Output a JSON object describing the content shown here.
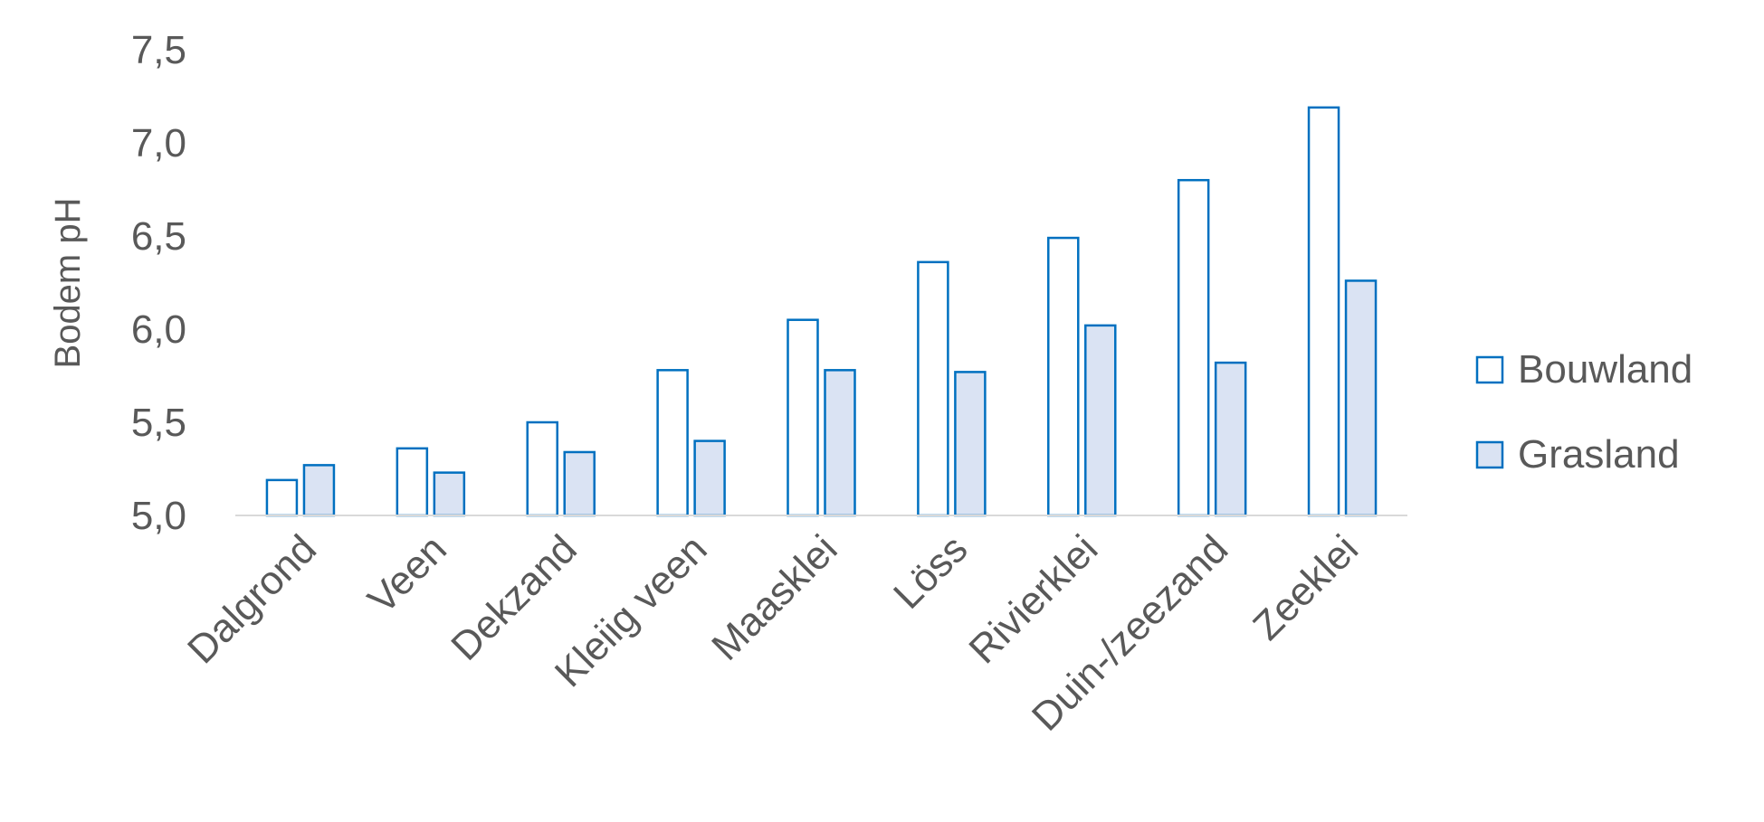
{
  "chart_data": {
    "type": "bar",
    "title": "",
    "xlabel": "",
    "ylabel": "Bodem pH",
    "ylim": [
      5.0,
      7.5
    ],
    "yticks": [
      "5,0",
      "5,5",
      "6,0",
      "6,5",
      "7,0",
      "7,5"
    ],
    "categories": [
      "Dalgrond",
      "Veen",
      "Dekzand",
      "Kleiig veen",
      "Maasklei",
      "Löss",
      "Rivierklei",
      "Duin-/zeezand",
      "Zeeklei"
    ],
    "series": [
      {
        "name": "Bouwland",
        "values": [
          5.19,
          5.36,
          5.5,
          5.78,
          6.05,
          6.36,
          6.49,
          6.8,
          7.19
        ],
        "fill": "#ffffff",
        "stroke": "#0070c0"
      },
      {
        "name": "Grasland",
        "values": [
          5.27,
          5.23,
          5.34,
          5.4,
          5.78,
          5.77,
          6.02,
          5.82,
          6.26
        ],
        "fill": "#dae3f3",
        "stroke": "#0070c0"
      }
    ],
    "grid": false,
    "legend_position": "right"
  }
}
